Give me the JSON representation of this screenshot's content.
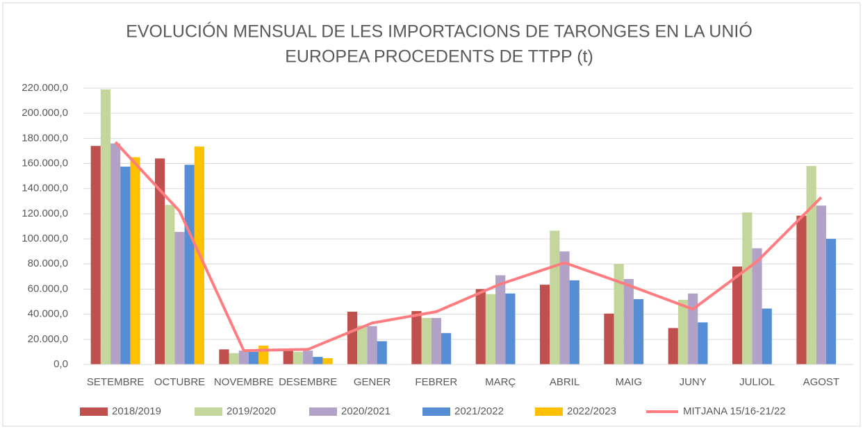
{
  "chart_data": {
    "type": "bar",
    "title": [
      "EVOLUCIÓN MENSUAL DE LES IMPORTACIONS DE TARONGES EN LA UNIÓ",
      "EUROPEA PROCEDENTS DE TTPP (t)"
    ],
    "categories": [
      "SETEMBRE",
      "OCTUBRE",
      "NOVEMBRE",
      "DESEMBRE",
      "GENER",
      "FEBRER",
      "MARÇ",
      "ABRIL",
      "MAIG",
      "JUNY",
      "JULIOL",
      "AGOST"
    ],
    "series": [
      {
        "name": "2018/2019",
        "color": "#c0504d",
        "values": [
          174000,
          164000,
          12000,
          11000,
          42000,
          42500,
          60000,
          63500,
          40500,
          29000,
          78000,
          118500
        ]
      },
      {
        "name": "2019/2020",
        "color": "#c3d69b",
        "values": [
          219000,
          127000,
          9000,
          10000,
          31000,
          37000,
          56000,
          106500,
          80000,
          51500,
          121000,
          158000
        ]
      },
      {
        "name": "2020/2021",
        "color": "#b3a2c7",
        "values": [
          176000,
          105500,
          11000,
          11000,
          30500,
          37000,
          71000,
          90000,
          68000,
          56500,
          92500,
          126500
        ]
      },
      {
        "name": "2021/2022",
        "color": "#558ed5",
        "values": [
          157500,
          159000,
          10000,
          6000,
          18500,
          25000,
          56500,
          67000,
          52000,
          33500,
          44500,
          100000
        ]
      },
      {
        "name": "2022/2023",
        "color": "#ffc000",
        "values": [
          165000,
          173500,
          15000,
          5000,
          null,
          null,
          null,
          null,
          null,
          null,
          null,
          null
        ]
      },
      {
        "name": "MITJANA 15/16-21/22",
        "color": "#ff7c80",
        "type": "line",
        "values": [
          177000,
          122000,
          11000,
          12000,
          33000,
          42000,
          64000,
          81000,
          63000,
          44000,
          82000,
          133000
        ]
      }
    ],
    "ylim": [
      0,
      220000
    ],
    "yticks": [
      {
        "value": 0,
        "label": "0,0"
      },
      {
        "value": 20000,
        "label": "20.000,0"
      },
      {
        "value": 40000,
        "label": "40.000,0"
      },
      {
        "value": 60000,
        "label": "60.000,0"
      },
      {
        "value": 80000,
        "label": "80.000,0"
      },
      {
        "value": 100000,
        "label": "100.000,0"
      },
      {
        "value": 120000,
        "label": "120.000,0"
      },
      {
        "value": 140000,
        "label": "140.000,0"
      },
      {
        "value": 160000,
        "label": "160.000,0"
      },
      {
        "value": 180000,
        "label": "180.000,0"
      },
      {
        "value": 200000,
        "label": "200.000,0"
      },
      {
        "value": 220000,
        "label": "220.000,0"
      }
    ],
    "grid": true,
    "legend": "bottom"
  }
}
